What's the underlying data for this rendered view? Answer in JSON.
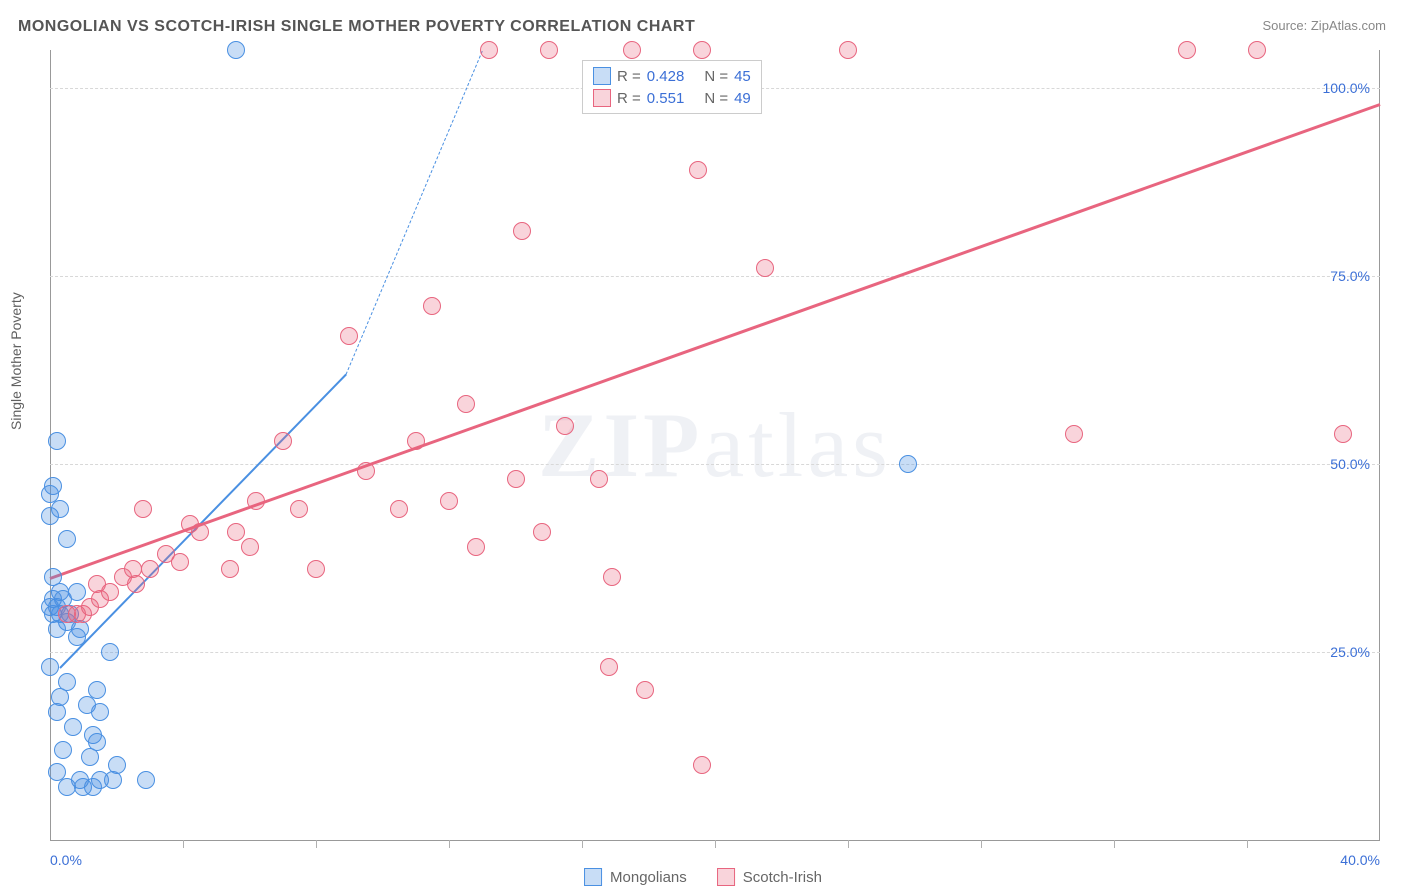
{
  "title": "MONGOLIAN VS SCOTCH-IRISH SINGLE MOTHER POVERTY CORRELATION CHART",
  "source": "Source: ZipAtlas.com",
  "y_axis_label": "Single Mother Poverty",
  "watermark_prefix": "ZIP",
  "watermark_suffix": "atlas",
  "chart": {
    "type": "scatter",
    "xlim": [
      0,
      40
    ],
    "ylim": [
      0,
      105
    ],
    "y_ticks": [
      25,
      50,
      75,
      100
    ],
    "y_tick_labels": [
      "25.0%",
      "50.0%",
      "75.0%",
      "100.0%"
    ],
    "x_ticks": [
      0,
      40
    ],
    "x_tick_labels": [
      "0.0%",
      "40.0%"
    ],
    "x_minor_ticks": [
      4,
      8,
      12,
      16,
      20,
      24,
      28,
      32,
      36
    ],
    "background_color": "#ffffff",
    "grid_color": "#d8d8d8",
    "axis_color": "#999999",
    "tick_label_color": "#3b6fd6",
    "point_radius": 9,
    "point_border_width": 1.5,
    "point_fill_opacity": 0.35
  },
  "series": [
    {
      "name": "Mongolians",
      "color": "#4a90e2",
      "fill": "rgba(74,144,226,0.30)",
      "stroke": "#4a90e2",
      "R_label": "R =",
      "R": "0.428",
      "N_label": "N =",
      "N": "45",
      "trend": {
        "x1": 0.3,
        "y1": 23,
        "x2": 8.9,
        "y2": 62,
        "solid_end_x": 8.9,
        "dash_end_x": 13.0,
        "dash_end_y": 105,
        "width": 2.5
      },
      "points": [
        [
          0.2,
          53
        ],
        [
          0.1,
          47
        ],
        [
          0.0,
          46
        ],
        [
          0.3,
          44
        ],
        [
          0.0,
          43
        ],
        [
          0.5,
          40
        ],
        [
          0.1,
          35
        ],
        [
          0.3,
          33
        ],
        [
          0.8,
          33
        ],
        [
          0.1,
          32
        ],
        [
          0.4,
          32
        ],
        [
          0.0,
          31
        ],
        [
          0.2,
          31
        ],
        [
          0.6,
          30
        ],
        [
          0.1,
          30
        ],
        [
          0.3,
          30
        ],
        [
          0.5,
          29
        ],
        [
          0.9,
          28
        ],
        [
          0.2,
          28
        ],
        [
          0.8,
          27
        ],
        [
          1.8,
          25
        ],
        [
          0.0,
          23
        ],
        [
          0.5,
          21
        ],
        [
          1.4,
          20
        ],
        [
          0.3,
          19
        ],
        [
          1.1,
          18
        ],
        [
          1.5,
          17
        ],
        [
          0.2,
          17
        ],
        [
          0.7,
          15
        ],
        [
          1.3,
          14
        ],
        [
          1.4,
          13
        ],
        [
          0.4,
          12
        ],
        [
          1.2,
          11
        ],
        [
          2.0,
          10
        ],
        [
          0.2,
          9
        ],
        [
          0.9,
          8
        ],
        [
          1.5,
          8
        ],
        [
          1.9,
          8
        ],
        [
          2.9,
          8
        ],
        [
          0.5,
          7
        ],
        [
          1.3,
          7
        ],
        [
          1.0,
          7
        ],
        [
          5.6,
          105
        ],
        [
          25.8,
          50
        ]
      ]
    },
    {
      "name": "Scotch-Irish",
      "color": "#e8657f",
      "fill": "rgba(232,101,127,0.28)",
      "stroke": "#e8657f",
      "R_label": "R =",
      "R": "0.551",
      "N_label": "N =",
      "N": "49",
      "trend": {
        "x1": 0,
        "y1": 35,
        "x2": 40,
        "y2": 98,
        "width": 3
      },
      "points": [
        [
          0.5,
          30
        ],
        [
          0.8,
          30
        ],
        [
          1.0,
          30
        ],
        [
          1.2,
          31
        ],
        [
          1.5,
          32
        ],
        [
          1.4,
          34
        ],
        [
          1.8,
          33
        ],
        [
          2.2,
          35
        ],
        [
          2.5,
          36
        ],
        [
          2.6,
          34
        ],
        [
          2.8,
          44
        ],
        [
          3.0,
          36
        ],
        [
          3.5,
          38
        ],
        [
          3.9,
          37
        ],
        [
          4.2,
          42
        ],
        [
          4.5,
          41
        ],
        [
          5.4,
          36
        ],
        [
          5.6,
          41
        ],
        [
          6.0,
          39
        ],
        [
          6.2,
          45
        ],
        [
          7.0,
          53
        ],
        [
          7.5,
          44
        ],
        [
          8.0,
          36
        ],
        [
          9.0,
          67
        ],
        [
          9.5,
          49
        ],
        [
          10.5,
          44
        ],
        [
          11.0,
          53
        ],
        [
          11.5,
          71
        ],
        [
          12.0,
          45
        ],
        [
          12.5,
          58
        ],
        [
          12.8,
          39
        ],
        [
          13.2,
          105
        ],
        [
          14.0,
          48
        ],
        [
          14.2,
          81
        ],
        [
          14.8,
          41
        ],
        [
          15.0,
          105
        ],
        [
          15.5,
          55
        ],
        [
          16.5,
          48
        ],
        [
          16.8,
          23
        ],
        [
          16.9,
          35
        ],
        [
          17.5,
          105
        ],
        [
          17.9,
          20
        ],
        [
          19.5,
          89
        ],
        [
          19.6,
          105
        ],
        [
          21.5,
          76
        ],
        [
          24.0,
          105
        ],
        [
          30.8,
          54
        ],
        [
          34.2,
          105
        ],
        [
          36.3,
          105
        ],
        [
          38.9,
          54
        ],
        [
          19.6,
          10
        ]
      ]
    }
  ],
  "legend": {
    "top_box": true,
    "bottom": true
  }
}
